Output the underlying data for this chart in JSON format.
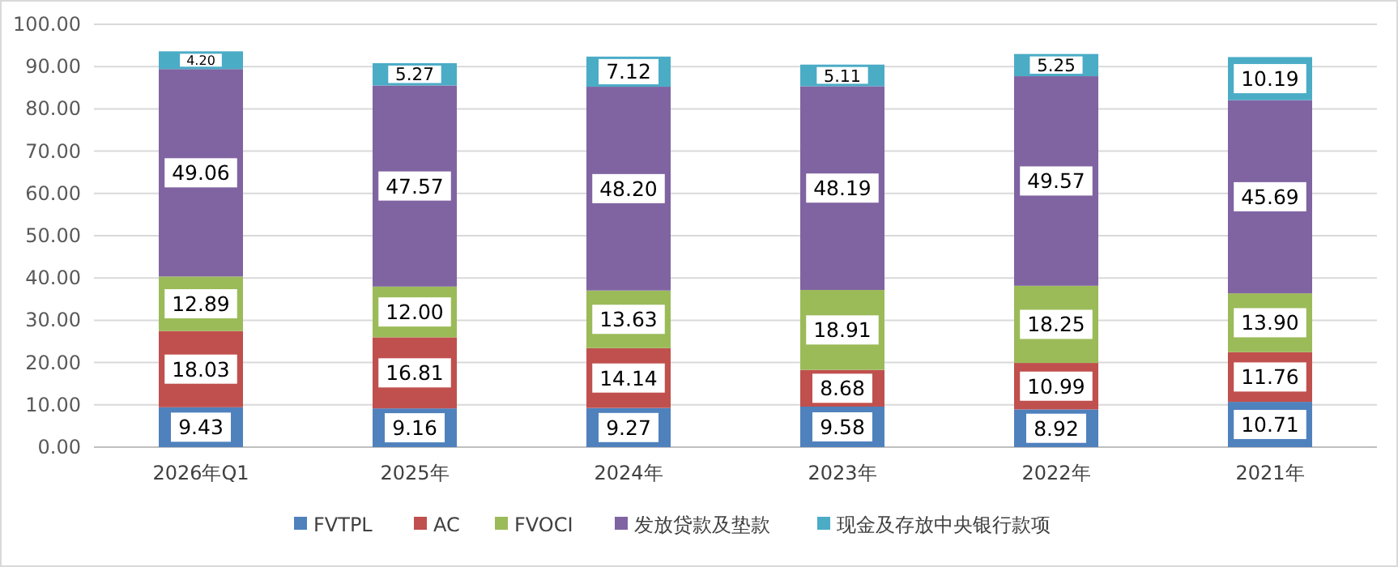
{
  "chart_data": {
    "type": "bar",
    "stacked": true,
    "categories": [
      "2026年Q1",
      "2025年",
      "2024年",
      "2023年",
      "2022年",
      "2021年"
    ],
    "series": [
      {
        "name": "FVTPL",
        "color": "#4f81bd",
        "values": [
          9.43,
          9.16,
          9.27,
          9.58,
          8.92,
          10.71
        ],
        "value_labels": [
          "9.43",
          "9.16",
          "9.27",
          "9.58",
          "8.92",
          "10.71"
        ]
      },
      {
        "name": "AC",
        "color": "#c0504d",
        "values": [
          18.03,
          16.81,
          14.14,
          8.68,
          10.99,
          11.76
        ],
        "value_labels": [
          "18.03",
          "16.81",
          "14.14",
          "8.68",
          "10.99",
          "11.76"
        ]
      },
      {
        "name": "FVOCI",
        "color": "#9bbb59",
        "values": [
          12.89,
          12.0,
          13.63,
          18.91,
          18.25,
          13.9
        ],
        "value_labels": [
          "12.89",
          "12.00",
          "13.63",
          "18.91",
          "18.25",
          "13.90"
        ]
      },
      {
        "name": "发放贷款及垫款",
        "color": "#8064a2",
        "values": [
          49.06,
          47.57,
          48.2,
          48.19,
          49.57,
          45.69
        ],
        "value_labels": [
          "49.06",
          "47.57",
          "48.20",
          "48.19",
          "49.57",
          "45.69"
        ]
      },
      {
        "name": "现金及存放中央银行款项",
        "color": "#4bacc6",
        "values": [
          4.2,
          5.27,
          7.12,
          5.11,
          5.25,
          10.19
        ],
        "value_labels": [
          "4.20",
          "5.27",
          "7.12",
          "5.11",
          "5.25",
          "10.19"
        ]
      }
    ],
    "ylim": [
      0,
      100
    ],
    "yticks": [
      {
        "value": 0,
        "label": "0.00"
      },
      {
        "value": 10,
        "label": "10.00"
      },
      {
        "value": 20,
        "label": "20.00"
      },
      {
        "value": 30,
        "label": "30.00"
      },
      {
        "value": 40,
        "label": "40.00"
      },
      {
        "value": 50,
        "label": "50.00"
      },
      {
        "value": 60,
        "label": "60.00"
      },
      {
        "value": 70,
        "label": "70.00"
      },
      {
        "value": 80,
        "label": "80.00"
      },
      {
        "value": 90,
        "label": "90.00"
      },
      {
        "value": 100,
        "label": "100.00"
      }
    ],
    "grid": "y",
    "legend": "bottom"
  }
}
